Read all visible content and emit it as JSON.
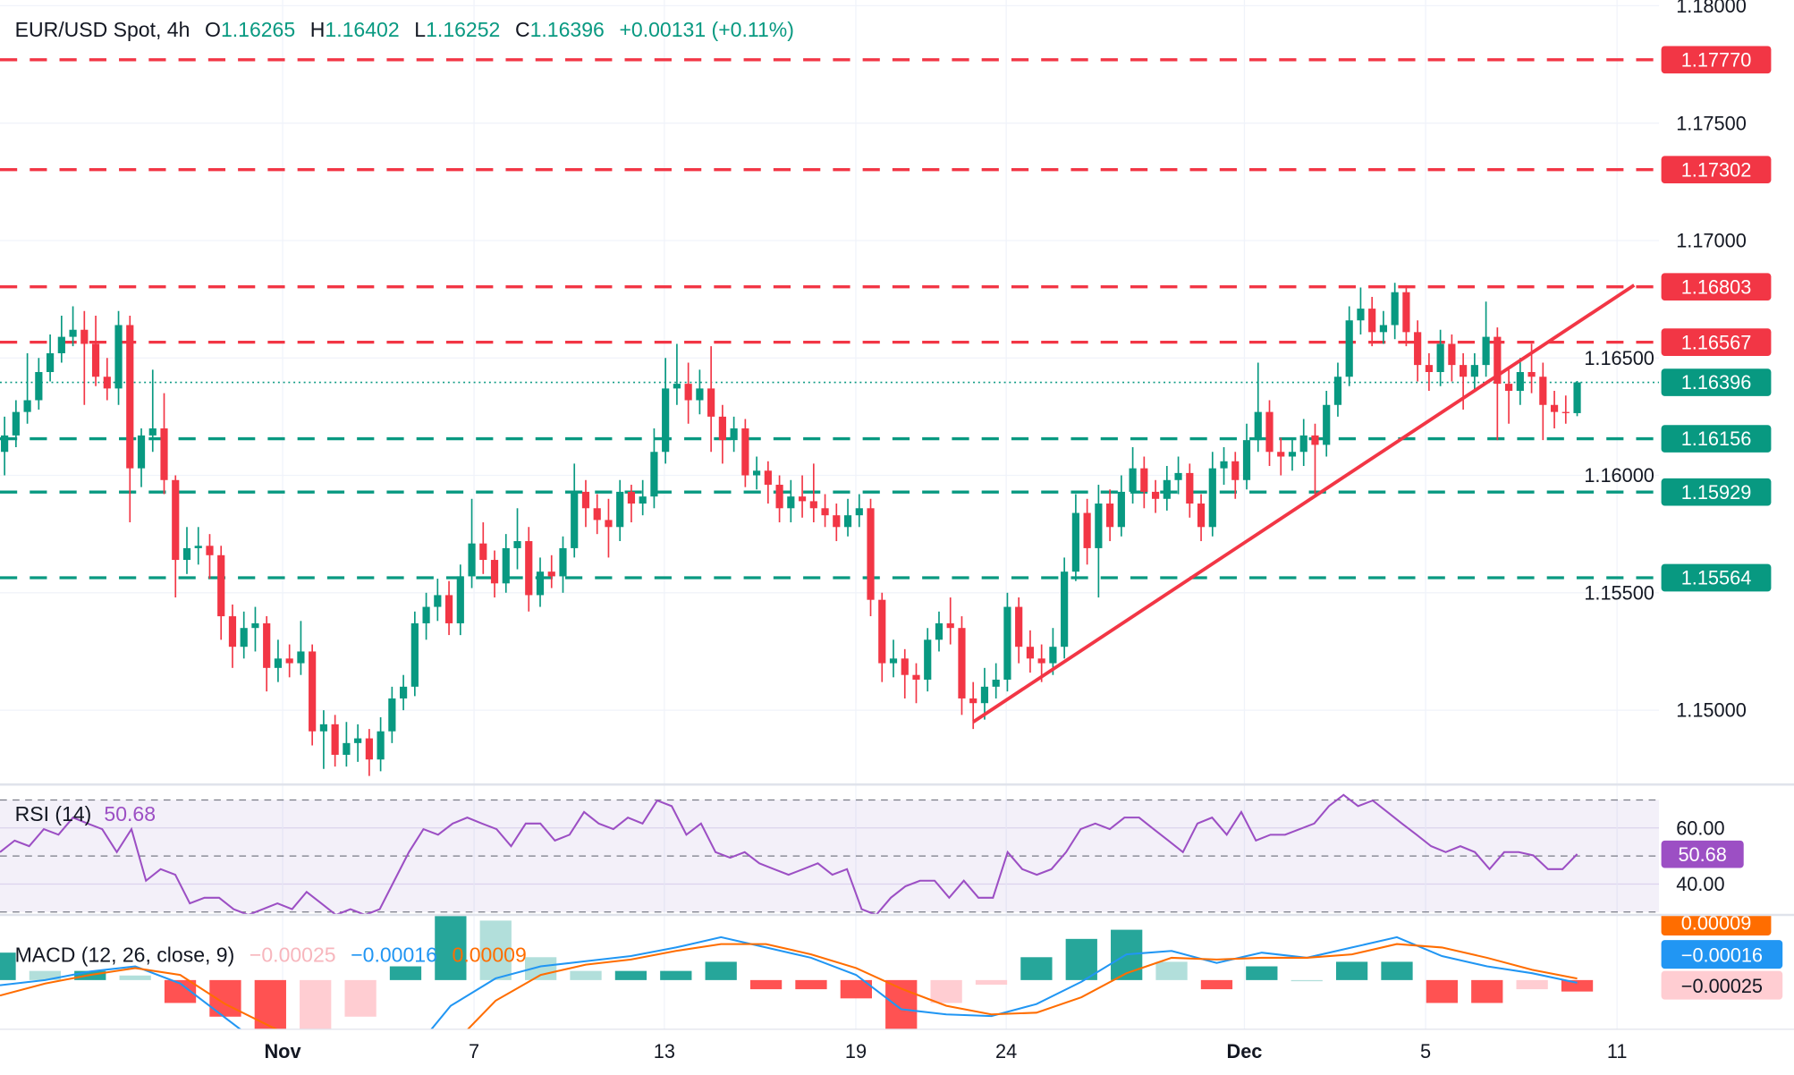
{
  "header": {
    "symbol": "EUR/USD Spot, 4h",
    "o_label": "O",
    "o": "1.16265",
    "h_label": "H",
    "h": "1.16402",
    "l_label": "L",
    "l": "1.16252",
    "c_label": "C",
    "c": "1.16396",
    "change": "+0.00131 (+0.11%)"
  },
  "colors": {
    "up": "#089981",
    "down": "#f23645",
    "resistance": "#f23645",
    "support": "#089981",
    "trendline": "#f23645",
    "rsi": "#9c4fc4",
    "macd": "#2196f3",
    "signal": "#ff6d00",
    "hist_up_strong": "#26a69a",
    "hist_up_weak": "#b2dfdb",
    "hist_down_strong": "#ff5252",
    "hist_down_weak": "#ffcdd2"
  },
  "chart_data": {
    "type": "candlestick",
    "price_axis_ticks": [
      "1.18000",
      "1.17500",
      "1.17000",
      "1.16500",
      "1.16000",
      "1.15500",
      "1.15000"
    ],
    "price_range": [
      1.147,
      1.18
    ],
    "current_price": "1.16396",
    "levels": {
      "resistance": [
        "1.17770",
        "1.17302",
        "1.16803",
        "1.16567"
      ],
      "support": [
        "1.16156",
        "1.15929",
        "1.15564"
      ]
    },
    "trendline": {
      "start": {
        "bar": 85,
        "price": 1.1495
      },
      "end": {
        "bar": 143,
        "price": 1.1681
      }
    },
    "time_labels": [
      {
        "label": "Nov",
        "bar": 24.4,
        "bold": true
      },
      {
        "label": "7",
        "bar": 41.2
      },
      {
        "label": "13",
        "bar": 57.9
      },
      {
        "label": "19",
        "bar": 74.7
      },
      {
        "label": "24",
        "bar": 87.9
      },
      {
        "label": "Dec",
        "bar": 108.8,
        "bold": true
      },
      {
        "label": "5",
        "bar": 124.7
      },
      {
        "label": "11",
        "bar": 141.5
      }
    ],
    "candles": [
      [
        1.161,
        1.1625,
        1.16,
        1.1617
      ],
      [
        1.1617,
        1.1632,
        1.1612,
        1.1627
      ],
      [
        1.1627,
        1.1652,
        1.1622,
        1.1632
      ],
      [
        1.1632,
        1.165,
        1.1628,
        1.1644
      ],
      [
        1.1644,
        1.166,
        1.164,
        1.1652
      ],
      [
        1.1652,
        1.1668,
        1.1648,
        1.1659
      ],
      [
        1.1659,
        1.1672,
        1.1655,
        1.1662
      ],
      [
        1.1662,
        1.167,
        1.163,
        1.1656
      ],
      [
        1.1656,
        1.1668,
        1.1638,
        1.1642
      ],
      [
        1.1642,
        1.165,
        1.1632,
        1.1637
      ],
      [
        1.1637,
        1.167,
        1.163,
        1.1664
      ],
      [
        1.1664,
        1.1668,
        1.158,
        1.1603
      ],
      [
        1.1603,
        1.162,
        1.1595,
        1.1617
      ],
      [
        1.1617,
        1.1645,
        1.161,
        1.162
      ],
      [
        1.162,
        1.1635,
        1.1592,
        1.1598
      ],
      [
        1.1598,
        1.16,
        1.1548,
        1.1564
      ],
      [
        1.1564,
        1.1578,
        1.1558,
        1.1569
      ],
      [
        1.1569,
        1.1578,
        1.1562,
        1.157
      ],
      [
        1.157,
        1.1575,
        1.1556,
        1.1566
      ],
      [
        1.1566,
        1.157,
        1.153,
        1.154
      ],
      [
        1.154,
        1.1545,
        1.1518,
        1.1527
      ],
      [
        1.1527,
        1.1542,
        1.1522,
        1.1535
      ],
      [
        1.1535,
        1.1544,
        1.1525,
        1.1537
      ],
      [
        1.1537,
        1.154,
        1.1508,
        1.1518
      ],
      [
        1.1518,
        1.153,
        1.1512,
        1.1522
      ],
      [
        1.1522,
        1.1528,
        1.1514,
        1.152
      ],
      [
        1.152,
        1.1538,
        1.1515,
        1.1525
      ],
      [
        1.1525,
        1.1528,
        1.1485,
        1.1491
      ],
      [
        1.1491,
        1.15,
        1.1475,
        1.1494
      ],
      [
        1.1494,
        1.1498,
        1.1476,
        1.1481
      ],
      [
        1.1481,
        1.1495,
        1.1476,
        1.1486
      ],
      [
        1.1486,
        1.1494,
        1.1478,
        1.1488
      ],
      [
        1.1488,
        1.1492,
        1.1472,
        1.1479
      ],
      [
        1.1479,
        1.1497,
        1.1474,
        1.1491
      ],
      [
        1.1491,
        1.151,
        1.1486,
        1.1505
      ],
      [
        1.1505,
        1.1515,
        1.15,
        1.151
      ],
      [
        1.151,
        1.1542,
        1.1506,
        1.1537
      ],
      [
        1.1537,
        1.155,
        1.153,
        1.1544
      ],
      [
        1.1544,
        1.1556,
        1.1538,
        1.1549
      ],
      [
        1.1549,
        1.1555,
        1.1532,
        1.1537
      ],
      [
        1.1537,
        1.1562,
        1.1532,
        1.1557
      ],
      [
        1.1557,
        1.159,
        1.1552,
        1.1571
      ],
      [
        1.1571,
        1.158,
        1.1558,
        1.1564
      ],
      [
        1.1564,
        1.1568,
        1.1548,
        1.1554
      ],
      [
        1.1554,
        1.1575,
        1.155,
        1.1569
      ],
      [
        1.1569,
        1.1586,
        1.156,
        1.1572
      ],
      [
        1.1572,
        1.1578,
        1.1542,
        1.1549
      ],
      [
        1.1549,
        1.1565,
        1.1544,
        1.1559
      ],
      [
        1.1559,
        1.1566,
        1.1552,
        1.1557
      ],
      [
        1.1557,
        1.1574,
        1.155,
        1.1569
      ],
      [
        1.1569,
        1.1605,
        1.1565,
        1.1593
      ],
      [
        1.1593,
        1.1598,
        1.1578,
        1.1586
      ],
      [
        1.1586,
        1.1592,
        1.1575,
        1.1581
      ],
      [
        1.1581,
        1.159,
        1.1565,
        1.1578
      ],
      [
        1.1578,
        1.1598,
        1.1572,
        1.1593
      ],
      [
        1.1593,
        1.1596,
        1.158,
        1.1588
      ],
      [
        1.1588,
        1.1598,
        1.1583,
        1.1591
      ],
      [
        1.1591,
        1.162,
        1.1586,
        1.161
      ],
      [
        1.161,
        1.165,
        1.1605,
        1.1637
      ],
      [
        1.1637,
        1.1656,
        1.163,
        1.1639
      ],
      [
        1.1639,
        1.1648,
        1.1622,
        1.1632
      ],
      [
        1.1632,
        1.1645,
        1.1626,
        1.1637
      ],
      [
        1.1637,
        1.1655,
        1.161,
        1.1625
      ],
      [
        1.1625,
        1.163,
        1.1605,
        1.1615
      ],
      [
        1.1615,
        1.1625,
        1.161,
        1.162
      ],
      [
        1.162,
        1.1624,
        1.1595,
        1.16
      ],
      [
        1.16,
        1.1608,
        1.1594,
        1.1602
      ],
      [
        1.1602,
        1.1606,
        1.1588,
        1.1596
      ],
      [
        1.1596,
        1.16,
        1.158,
        1.1586
      ],
      [
        1.1586,
        1.1598,
        1.158,
        1.1591
      ],
      [
        1.1591,
        1.16,
        1.1582,
        1.1589
      ],
      [
        1.1589,
        1.1605,
        1.158,
        1.1586
      ],
      [
        1.1586,
        1.1592,
        1.1578,
        1.1583
      ],
      [
        1.1583,
        1.1588,
        1.1572,
        1.1578
      ],
      [
        1.1578,
        1.159,
        1.1574,
        1.1583
      ],
      [
        1.1583,
        1.1592,
        1.1578,
        1.1586
      ],
      [
        1.1586,
        1.159,
        1.154,
        1.1547
      ],
      [
        1.1547,
        1.155,
        1.1512,
        1.152
      ],
      [
        1.152,
        1.153,
        1.1514,
        1.1522
      ],
      [
        1.1522,
        1.1526,
        1.1505,
        1.1515
      ],
      [
        1.1515,
        1.152,
        1.1503,
        1.1513
      ],
      [
        1.1513,
        1.1535,
        1.1508,
        1.153
      ],
      [
        1.153,
        1.1542,
        1.1525,
        1.1537
      ],
      [
        1.1537,
        1.1548,
        1.1528,
        1.1535
      ],
      [
        1.1535,
        1.154,
        1.1498,
        1.1505
      ],
      [
        1.1505,
        1.1512,
        1.1492,
        1.1503
      ],
      [
        1.1503,
        1.1518,
        1.1496,
        1.151
      ],
      [
        1.151,
        1.152,
        1.1505,
        1.1513
      ],
      [
        1.1513,
        1.155,
        1.1508,
        1.1544
      ],
      [
        1.1544,
        1.1548,
        1.152,
        1.1527
      ],
      [
        1.1527,
        1.1534,
        1.1516,
        1.1522
      ],
      [
        1.1522,
        1.1528,
        1.1512,
        1.152
      ],
      [
        1.152,
        1.1535,
        1.1515,
        1.1527
      ],
      [
        1.1527,
        1.1565,
        1.1522,
        1.1559
      ],
      [
        1.1559,
        1.1592,
        1.1555,
        1.1584
      ],
      [
        1.1584,
        1.159,
        1.1562,
        1.1569
      ],
      [
        1.1569,
        1.1596,
        1.1548,
        1.1588
      ],
      [
        1.1588,
        1.1594,
        1.1572,
        1.1578
      ],
      [
        1.1578,
        1.16,
        1.1574,
        1.1593
      ],
      [
        1.1593,
        1.1612,
        1.1588,
        1.1603
      ],
      [
        1.1603,
        1.1608,
        1.1586,
        1.1593
      ],
      [
        1.1593,
        1.1598,
        1.1584,
        1.159
      ],
      [
        1.159,
        1.1604,
        1.1585,
        1.1598
      ],
      [
        1.1598,
        1.1608,
        1.1592,
        1.1601
      ],
      [
        1.1601,
        1.1605,
        1.1582,
        1.1588
      ],
      [
        1.1588,
        1.1592,
        1.1572,
        1.1578
      ],
      [
        1.1578,
        1.161,
        1.1574,
        1.1603
      ],
      [
        1.1603,
        1.1612,
        1.1596,
        1.1606
      ],
      [
        1.1606,
        1.161,
        1.159,
        1.1598
      ],
      [
        1.1598,
        1.1622,
        1.1594,
        1.1615
      ],
      [
        1.1615,
        1.1648,
        1.161,
        1.1627
      ],
      [
        1.1627,
        1.1632,
        1.1604,
        1.161
      ],
      [
        1.161,
        1.1616,
        1.16,
        1.1608
      ],
      [
        1.1608,
        1.1616,
        1.1602,
        1.161
      ],
      [
        1.161,
        1.1624,
        1.1604,
        1.1617
      ],
      [
        1.1617,
        1.1622,
        1.1592,
        1.1613
      ],
      [
        1.1613,
        1.1636,
        1.1608,
        1.163
      ],
      [
        1.163,
        1.1648,
        1.1625,
        1.1642
      ],
      [
        1.1642,
        1.1672,
        1.1638,
        1.1666
      ],
      [
        1.1666,
        1.168,
        1.166,
        1.1671
      ],
      [
        1.1671,
        1.1676,
        1.1655,
        1.1661
      ],
      [
        1.1661,
        1.167,
        1.1656,
        1.1664
      ],
      [
        1.1664,
        1.1682,
        1.1658,
        1.1678
      ],
      [
        1.1678,
        1.1681,
        1.1655,
        1.1661
      ],
      [
        1.1661,
        1.1666,
        1.164,
        1.1647
      ],
      [
        1.1647,
        1.1652,
        1.1636,
        1.1644
      ],
      [
        1.1644,
        1.1662,
        1.1638,
        1.1656
      ],
      [
        1.1656,
        1.166,
        1.164,
        1.1647
      ],
      [
        1.1647,
        1.1652,
        1.1628,
        1.1642
      ],
      [
        1.1642,
        1.1652,
        1.1636,
        1.1647
      ],
      [
        1.1647,
        1.1674,
        1.1642,
        1.1659
      ],
      [
        1.1659,
        1.1663,
        1.1615,
        1.1639
      ],
      [
        1.1639,
        1.1645,
        1.1622,
        1.1636
      ],
      [
        1.1636,
        1.165,
        1.163,
        1.1644
      ],
      [
        1.1644,
        1.1656,
        1.1635,
        1.1642
      ],
      [
        1.1642,
        1.1648,
        1.1615,
        1.163
      ],
      [
        1.163,
        1.1636,
        1.162,
        1.1627
      ],
      [
        1.1627,
        1.1634,
        1.1622,
        1.16265
      ],
      [
        1.16265,
        1.16402,
        1.16252,
        1.16396
      ]
    ],
    "rsi": {
      "title": "RSI (14)",
      "value": "50.68",
      "ticks": [
        "60.00",
        "40.00"
      ],
      "bands": [
        70,
        50,
        30
      ],
      "values": [
        51.4,
        55.5,
        53.5,
        59.6,
        57.6,
        63.7,
        61.6,
        59.6,
        51.4,
        59.6,
        41.2,
        45.3,
        43.3,
        33.1,
        35.1,
        35.1,
        31,
        29,
        31,
        33.1,
        31,
        37.2,
        33.1,
        29,
        31,
        29,
        31,
        41.2,
        51.4,
        59.6,
        57.6,
        61.6,
        63.7,
        61.6,
        59.6,
        53.5,
        61.6,
        61.6,
        55.5,
        57.6,
        65.7,
        61.6,
        59.6,
        63.7,
        61.6,
        69.8,
        67.8,
        57.6,
        61.6,
        51.4,
        49.4,
        51.4,
        47.4,
        45.3,
        43.3,
        45.3,
        47.4,
        43.3,
        45.3,
        31,
        29,
        35.1,
        39.2,
        41.2,
        41.2,
        35.1,
        41.2,
        35.1,
        35.1,
        51.4,
        45.3,
        43.3,
        45.3,
        51.4,
        59.6,
        61.6,
        59.6,
        63.7,
        63.7,
        59.6,
        55.5,
        51.4,
        61.6,
        63.7,
        57.6,
        65.7,
        55.5,
        57.6,
        57.6,
        59.6,
        61.6,
        67.8,
        71.8,
        67.8,
        69.8,
        65.7,
        61.6,
        57.6,
        53.5,
        51.4,
        53.5,
        51.4,
        45.3,
        51.4,
        51.4,
        50.2,
        45.3,
        45.3,
        50.68
      ]
    },
    "macd": {
      "title": "MACD (12, 26, close, 9)",
      "hist_value": "−0.00025",
      "macd_value": "−0.00016",
      "signal_value": "0.00009",
      "signal_axis_label": "0.00009",
      "macd": [
        -0.0003,
        0,
        0.0005,
        0.0008,
        -0.0002,
        -0.0022,
        -0.0042,
        -0.0052,
        -0.0055,
        -0.0047,
        -0.0015,
        0.0001,
        0.0008,
        0.0011,
        0.0014,
        0.0019,
        0.0025,
        0.0019,
        0.0013,
        0.0003,
        -0.0017,
        -0.002,
        -0.0021,
        -0.0014,
        -0.0001,
        0.0015,
        0.0017,
        0.001,
        0.0016,
        0.0013,
        0.0019,
        0.0025,
        0.0014,
        0.0008,
        0.0004,
        -0.00016
      ],
      "signal": [
        -0.0009,
        -0.0002,
        0.0003,
        0.0007,
        0.0003,
        -0.0014,
        -0.0027,
        -0.0039,
        -0.0047,
        -0.005,
        -0.0039,
        -0.0012,
        0.0003,
        0.0009,
        0.0012,
        0.0017,
        0.0021,
        0.0021,
        0.0015,
        0.0007,
        -0.0005,
        -0.0015,
        -0.002,
        -0.0019,
        -0.001,
        0.0004,
        0.0013,
        0.0012,
        0.0013,
        0.0013,
        0.0015,
        0.0021,
        0.0019,
        0.0013,
        0.0006,
        9e-05
      ],
      "histogram": [
        0.0006,
        0.0002,
        0.0002,
        0.0001,
        -0.0005,
        -0.0008,
        -0.0015,
        -0.0013,
        -0.0008,
        0.0003,
        0.0024,
        0.0013,
        0.0005,
        0.0002,
        0.0002,
        0.0002,
        0.0004,
        -0.0002,
        -0.0002,
        -0.0004,
        -0.0012,
        -0.0005,
        -0.0001,
        0.0005,
        0.0009,
        0.0011,
        0.0004,
        -0.0002,
        0.0003,
        0.0,
        0.0004,
        0.0004,
        -0.0005,
        -0.0005,
        -0.0002,
        -0.00025
      ]
    }
  }
}
